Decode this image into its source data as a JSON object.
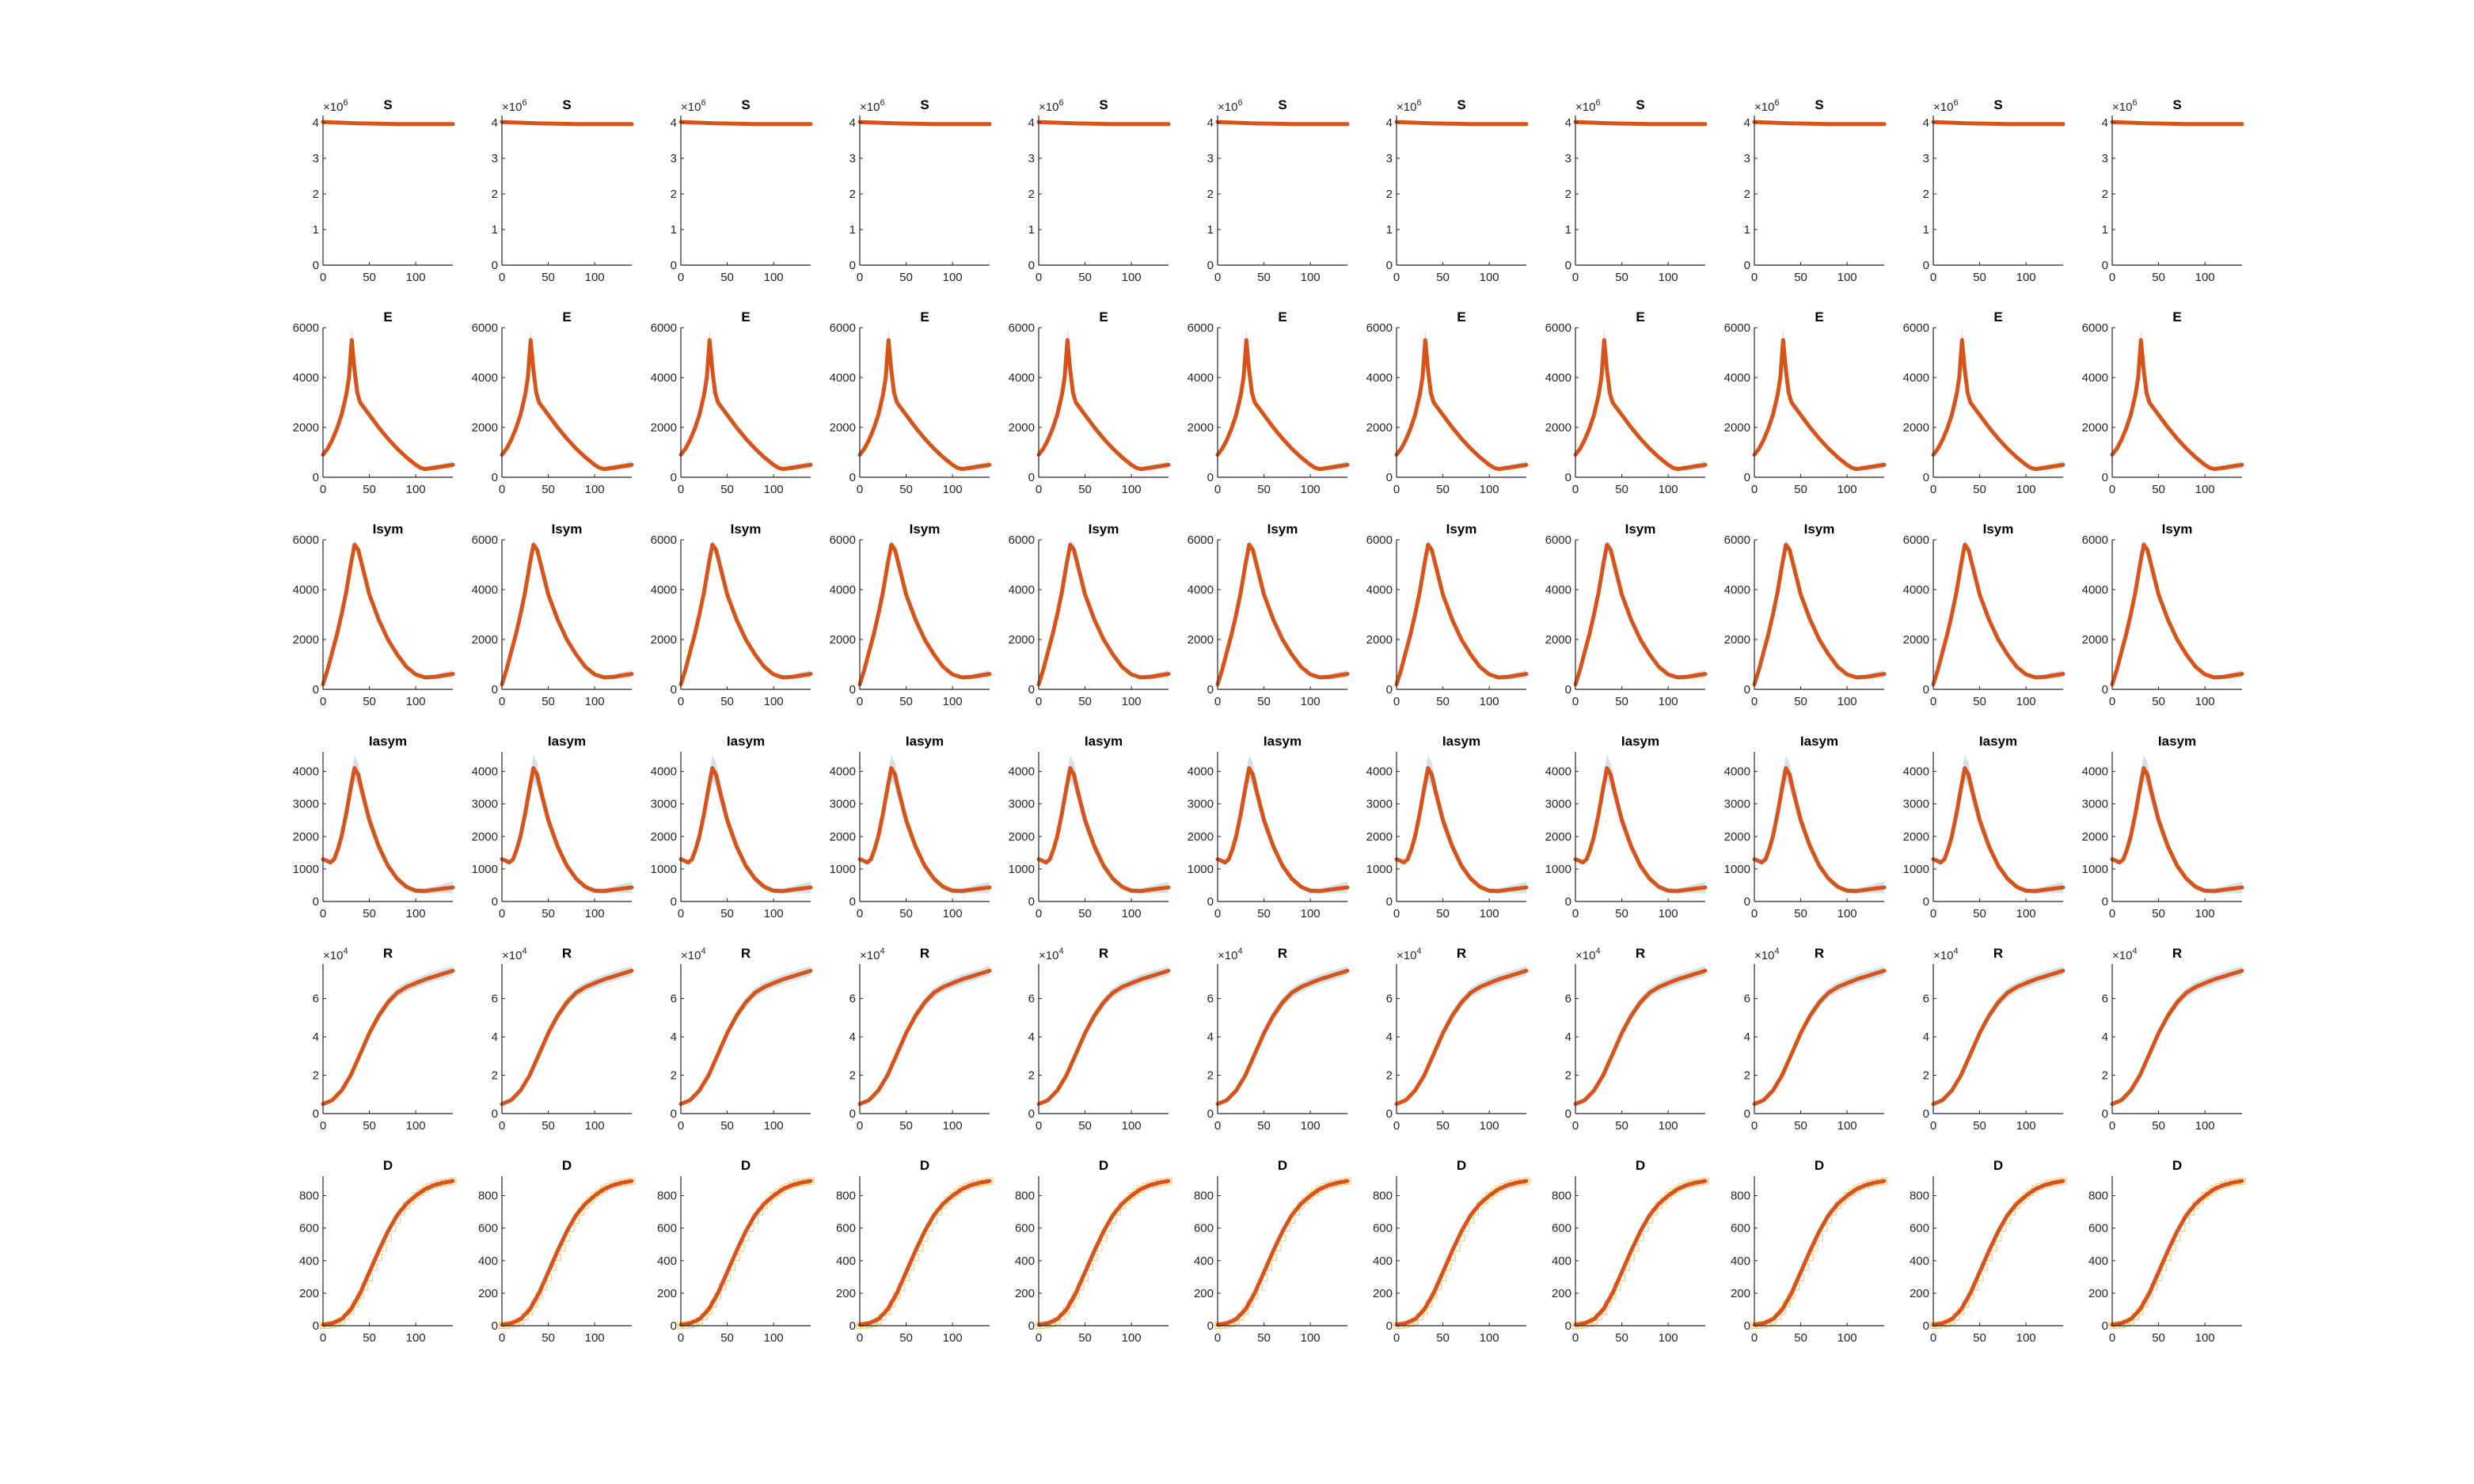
{
  "chart_data": {
    "type": "line",
    "layout": {
      "rows": 6,
      "cols": 11
    },
    "colors": {
      "model": "#D95319",
      "band": "#D3E2E8",
      "observed": "#F5D08C",
      "axis": "#262626"
    },
    "x_ticks": [
      0,
      50,
      100
    ],
    "xlim": [
      0,
      140
    ],
    "rows": [
      {
        "title": "S",
        "exponent_label": "×10",
        "exponent_power": "6",
        "ylim": [
          0,
          4.2
        ],
        "y_ticks": [
          "0",
          "1",
          "2",
          "3",
          "4"
        ],
        "y_tick_values": [
          0,
          1,
          2,
          3,
          4
        ],
        "model_x": [
          0,
          10,
          20,
          30,
          40,
          60,
          80,
          100,
          120,
          140
        ],
        "model_y": [
          4.02,
          4.01,
          4.0,
          3.99,
          3.98,
          3.97,
          3.96,
          3.96,
          3.96,
          3.96
        ],
        "band_halfwidth": [
          0.01,
          0.01,
          0.01,
          0.01,
          0.01,
          0.01,
          0.01,
          0.01,
          0.01,
          0.01
        ]
      },
      {
        "title": "E",
        "exponent_label": "",
        "exponent_power": "",
        "ylim": [
          0,
          6000
        ],
        "y_ticks": [
          "0",
          "2000",
          "4000",
          "6000"
        ],
        "y_tick_values": [
          0,
          2000,
          4000,
          6000
        ],
        "model_x": [
          0,
          5,
          10,
          15,
          20,
          25,
          28,
          31,
          34,
          37,
          40,
          50,
          60,
          70,
          80,
          90,
          100,
          105,
          110,
          120,
          130,
          140
        ],
        "model_y": [
          900,
          1150,
          1500,
          1950,
          2500,
          3300,
          4000,
          5500,
          4300,
          3400,
          3000,
          2500,
          2000,
          1550,
          1150,
          800,
          500,
          380,
          330,
          380,
          440,
          500
        ],
        "band_halfwidth": [
          60,
          70,
          90,
          110,
          140,
          200,
          300,
          500,
          300,
          200,
          150,
          120,
          110,
          100,
          90,
          80,
          70,
          70,
          80,
          100,
          120,
          160
        ]
      },
      {
        "title": "Isym",
        "exponent_label": "",
        "exponent_power": "",
        "ylim": [
          0,
          6000
        ],
        "y_ticks": [
          "0",
          "2000",
          "4000",
          "6000"
        ],
        "y_tick_values": [
          0,
          2000,
          4000,
          6000
        ],
        "model_x": [
          0,
          5,
          10,
          15,
          20,
          25,
          30,
          34,
          38,
          42,
          50,
          60,
          70,
          80,
          90,
          100,
          110,
          120,
          130,
          140
        ],
        "model_y": [
          200,
          800,
          1500,
          2200,
          3000,
          3900,
          5000,
          5800,
          5600,
          5000,
          3800,
          2800,
          2000,
          1400,
          900,
          600,
          480,
          500,
          560,
          620
        ],
        "band_halfwidth": [
          40,
          60,
          80,
          100,
          120,
          150,
          180,
          200,
          200,
          180,
          150,
          120,
          100,
          90,
          80,
          80,
          90,
          100,
          130,
          160
        ]
      },
      {
        "title": "Iasym",
        "exponent_label": "",
        "exponent_power": "",
        "ylim": [
          0,
          4600
        ],
        "y_ticks": [
          "0",
          "1000",
          "2000",
          "3000",
          "4000"
        ],
        "y_tick_values": [
          0,
          1000,
          2000,
          3000,
          4000
        ],
        "model_x": [
          0,
          4,
          8,
          12,
          16,
          20,
          25,
          30,
          34,
          38,
          42,
          50,
          60,
          70,
          80,
          90,
          100,
          110,
          120,
          130,
          140
        ],
        "model_y": [
          1300,
          1250,
          1200,
          1300,
          1600,
          2000,
          2700,
          3500,
          4100,
          3900,
          3400,
          2500,
          1700,
          1100,
          700,
          450,
          330,
          320,
          360,
          400,
          430
        ],
        "band_halfwidth": [
          60,
          60,
          60,
          80,
          100,
          150,
          250,
          350,
          400,
          380,
          330,
          250,
          180,
          130,
          100,
          80,
          80,
          90,
          110,
          140,
          180
        ]
      },
      {
        "title": "R",
        "exponent_label": "×10",
        "exponent_power": "4",
        "ylim": [
          0,
          7.8
        ],
        "y_ticks": [
          "0",
          "2",
          "4",
          "6"
        ],
        "y_tick_values": [
          0,
          2,
          4,
          6
        ],
        "model_x": [
          0,
          10,
          20,
          30,
          40,
          50,
          60,
          70,
          80,
          90,
          100,
          110,
          120,
          130,
          140
        ],
        "model_y": [
          0.5,
          0.7,
          1.2,
          2.0,
          3.1,
          4.2,
          5.1,
          5.8,
          6.3,
          6.6,
          6.8,
          7.0,
          7.15,
          7.3,
          7.45
        ],
        "band_halfwidth": [
          0.02,
          0.04,
          0.06,
          0.1,
          0.15,
          0.2,
          0.25,
          0.25,
          0.25,
          0.25,
          0.25,
          0.25,
          0.25,
          0.25,
          0.25
        ]
      },
      {
        "title": "D",
        "exponent_label": "",
        "exponent_power": "",
        "ylim": [
          0,
          920
        ],
        "y_ticks": [
          "0",
          "200",
          "400",
          "600",
          "800"
        ],
        "y_tick_values": [
          0,
          200,
          400,
          600,
          800
        ],
        "model_x": [
          0,
          10,
          20,
          30,
          40,
          50,
          60,
          70,
          80,
          90,
          100,
          110,
          120,
          130,
          140
        ],
        "model_y": [
          5,
          15,
          40,
          100,
          200,
          330,
          460,
          580,
          680,
          750,
          800,
          840,
          865,
          880,
          890
        ],
        "band_halfwidth": [
          2,
          4,
          6,
          10,
          14,
          16,
          18,
          18,
          16,
          14,
          12,
          10,
          10,
          10,
          10
        ],
        "observed_x": [
          0,
          5,
          10,
          15,
          20,
          25,
          30,
          35,
          40,
          45,
          50,
          55,
          60,
          65,
          70,
          75,
          80,
          85,
          90,
          95,
          100,
          105,
          110,
          115,
          120,
          125,
          130,
          135,
          140
        ],
        "observed_y": [
          2,
          4,
          8,
          15,
          30,
          55,
          90,
          135,
          185,
          240,
          295,
          360,
          420,
          480,
          540,
          600,
          650,
          700,
          740,
          770,
          800,
          820,
          840,
          855,
          865,
          875,
          880,
          885,
          890
        ]
      }
    ]
  }
}
